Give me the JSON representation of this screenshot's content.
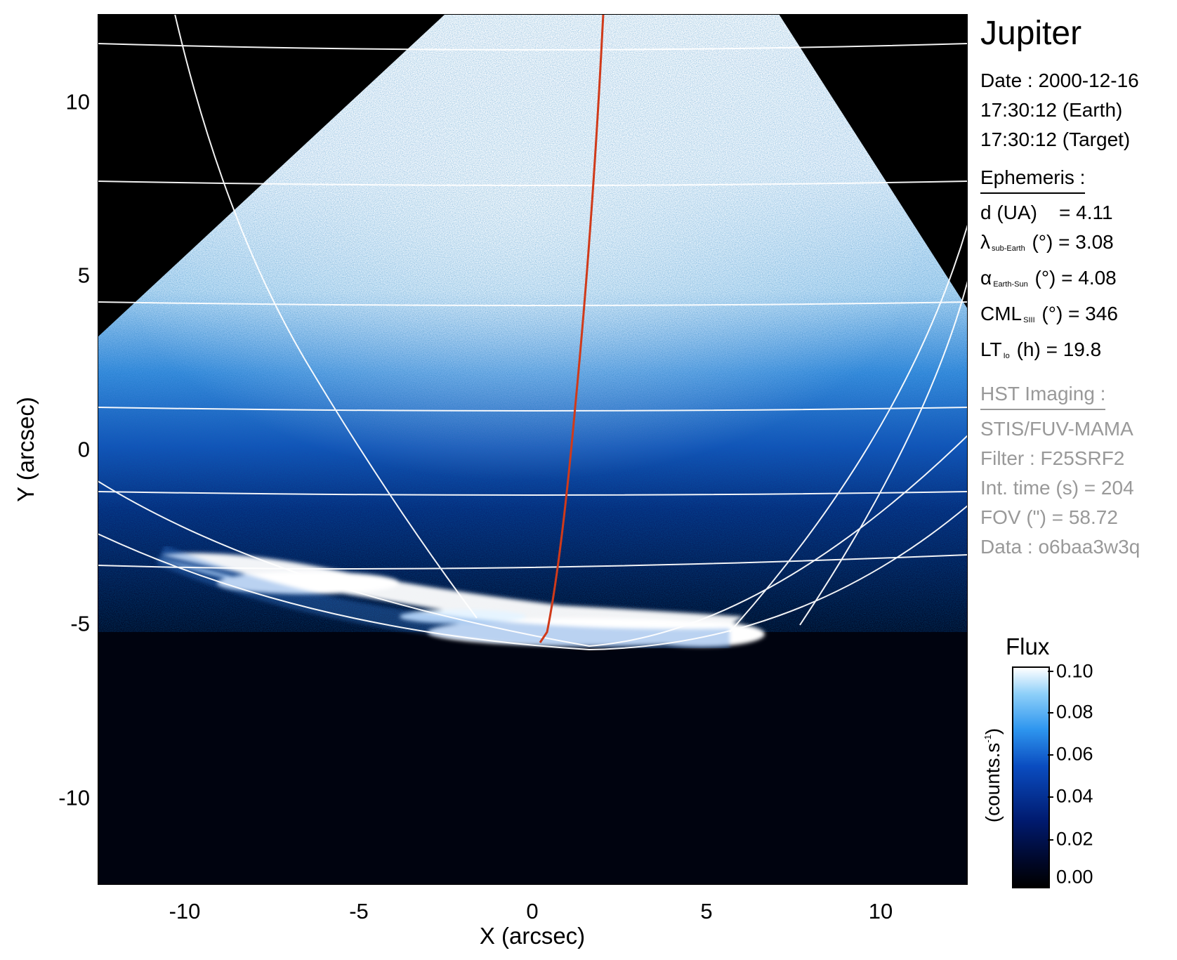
{
  "plot": {
    "xlabel": "X (arcsec)",
    "ylabel": "Y (arcsec)",
    "xlim": [
      -12.5,
      12.5
    ],
    "ylim": [
      -12.5,
      12.5
    ],
    "x_ticks": [
      "-10",
      "-5",
      "0",
      "5",
      "10"
    ],
    "y_ticks": [
      "10",
      "5",
      "0",
      "-5",
      "-10"
    ]
  },
  "info": {
    "target": "Jupiter",
    "date": "Date : 2000-12-16",
    "time_earth": "17:30:12 (Earth)",
    "time_target": "17:30:12 (Target)",
    "ephemeris": {
      "title": "Ephemeris :",
      "d_label": "d (UA)",
      "d_value": "= 4.11",
      "lambda_symbol": "λ",
      "lambda_sub": "sub-Earth",
      "lambda_value": "(°) = 3.08",
      "alpha_symbol": "α",
      "alpha_sub": "Earth-Sun",
      "alpha_value": "(°) = 4.08",
      "cml_label": "CML",
      "cml_sub": "SIII",
      "cml_value": "(°) = 346",
      "lt_label": "LT",
      "lt_sub": "Io",
      "lt_value": "(h) = 19.8"
    },
    "hst": {
      "title": "HST Imaging :",
      "instrument": "STIS/FUV-MAMA",
      "filter": "Filter : F25SRF2",
      "int_time": "Int. time (s) = 204",
      "fov": "FOV (\") = 58.72",
      "data": "Data : o6baa3w3q"
    }
  },
  "colorbar": {
    "title": "Flux",
    "unit_base": "(counts.s",
    "unit_sup": "-1",
    "unit_close": ")",
    "ticks": [
      "0.10",
      "0.08",
      "0.06",
      "0.04",
      "0.02",
      "0.00"
    ]
  },
  "colors": {
    "sky": "#000000",
    "emission_bright": "#ffffff",
    "emission_mid": "#2e96ef",
    "emission_low": "#001a6e",
    "grid": "#ffffff",
    "io_footprint": "#d03a1a"
  }
}
